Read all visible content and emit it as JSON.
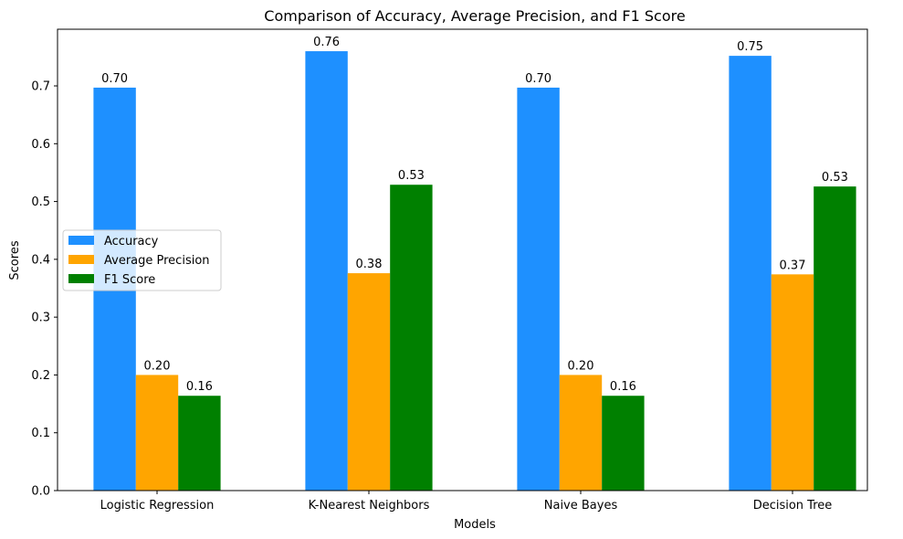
{
  "chart_data": {
    "type": "bar",
    "title": "Comparison of Accuracy, Average Precision, and F1 Score",
    "xlabel": "Models",
    "ylabel": "Scores",
    "categories": [
      "Logistic Regression",
      "K-Nearest Neighbors",
      "Naive Bayes",
      "Decision Tree"
    ],
    "series": [
      {
        "name": "Accuracy",
        "color": "#1e90ff",
        "values": [
          0.697,
          0.76,
          0.697,
          0.752
        ],
        "labels": [
          "0.70",
          "0.76",
          "0.70",
          "0.75"
        ]
      },
      {
        "name": "Average Precision",
        "color": "#ffa500",
        "values": [
          0.2,
          0.376,
          0.2,
          0.374
        ],
        "labels": [
          "0.20",
          "0.38",
          "0.20",
          "0.37"
        ]
      },
      {
        "name": "F1 Score",
        "color": "#008000",
        "values": [
          0.164,
          0.529,
          0.164,
          0.526
        ],
        "labels": [
          "0.16",
          "0.53",
          "0.16",
          "0.53"
        ]
      }
    ],
    "yticks": [
      "0.0",
      "0.1",
      "0.2",
      "0.3",
      "0.4",
      "0.5",
      "0.6",
      "0.7"
    ],
    "ylim": [
      0,
      0.798
    ],
    "grid": false,
    "legend_position": "center-left"
  }
}
